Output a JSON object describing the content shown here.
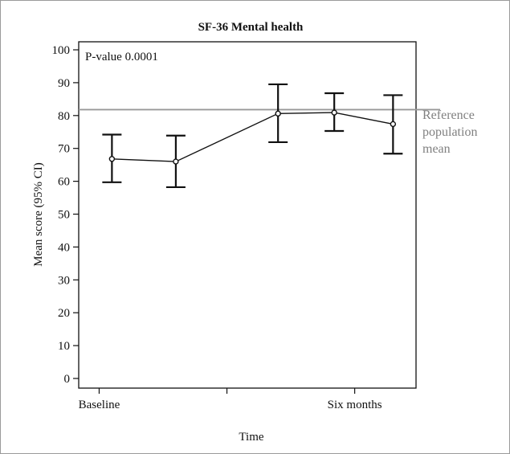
{
  "chart_data": {
    "type": "line",
    "title": "SF-36 Mental health",
    "xlabel": "Time",
    "ylabel": "Mean score (95% CI)",
    "ylim": [
      0,
      100
    ],
    "yticks": [
      0,
      10,
      20,
      30,
      40,
      50,
      60,
      70,
      80,
      90,
      100
    ],
    "x_tick_labels": [
      {
        "x": 0,
        "label": "Baseline"
      },
      {
        "x": 5,
        "label": "Six months"
      }
    ],
    "xlim": [
      -0.4,
      6.2
    ],
    "x_minor_ticks": [
      2.5
    ],
    "annotation": "P-value 0.0001",
    "reference_line": {
      "value": 81.8,
      "label_lines": [
        "Reference",
        "population",
        "mean"
      ],
      "color": "#999999"
    },
    "series": [
      {
        "points": [
          {
            "x": 0.25,
            "y": 66.8,
            "lower": 59.7,
            "upper": 74.2
          },
          {
            "x": 1.5,
            "y": 66.0,
            "lower": 58.2,
            "upper": 73.9
          },
          {
            "x": 3.5,
            "y": 80.6,
            "lower": 71.9,
            "upper": 89.5
          },
          {
            "x": 4.6,
            "y": 80.9,
            "lower": 75.3,
            "upper": 86.8
          },
          {
            "x": 5.75,
            "y": 77.4,
            "lower": 68.4,
            "upper": 86.2
          }
        ]
      }
    ],
    "grid": false,
    "legend": false
  }
}
